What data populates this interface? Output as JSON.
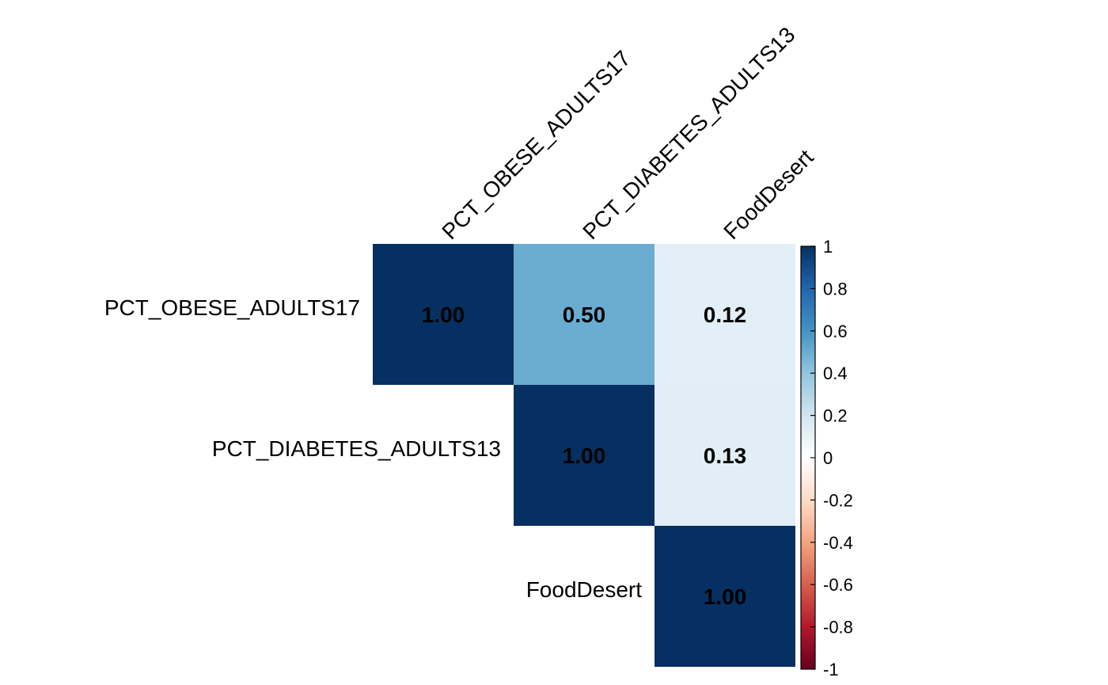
{
  "chart_data": {
    "type": "heatmap",
    "title": "",
    "variables": [
      "PCT_OBESE_ADULTS17",
      "PCT_DIABETES_ADULTS13",
      "FoodDesert"
    ],
    "matrix": [
      [
        1.0,
        0.5,
        0.12
      ],
      [
        0.5,
        1.0,
        0.13
      ],
      [
        0.12,
        0.13,
        1.0
      ]
    ],
    "display": "upper",
    "cell_labels": [
      [
        "1.00",
        "0.50",
        "0.12"
      ],
      [
        "",
        "1.00",
        "0.13"
      ],
      [
        "",
        "",
        "1.00"
      ]
    ],
    "colorbar": {
      "range": [
        -1,
        1
      ],
      "ticks": [
        "1",
        "0.8",
        "0.6",
        "0.4",
        "0.2",
        "0",
        "-0.2",
        "-0.4",
        "-0.6",
        "-0.8",
        "-1"
      ],
      "tick_values": [
        1,
        0.8,
        0.6,
        0.4,
        0.2,
        0,
        -0.2,
        -0.4,
        -0.6,
        -0.8,
        -1
      ],
      "colors": {
        "neg1": "#67001F",
        "neg08": "#B2182B",
        "neg06": "#D6604D",
        "neg04": "#F4A582",
        "neg02": "#FDDBC7",
        "zero": "#FFFFFF",
        "pos02": "#D1E5F0",
        "pos04": "#92C5DE",
        "pos06": "#4393C3",
        "pos08": "#2166AC",
        "pos1": "#053061"
      }
    }
  }
}
